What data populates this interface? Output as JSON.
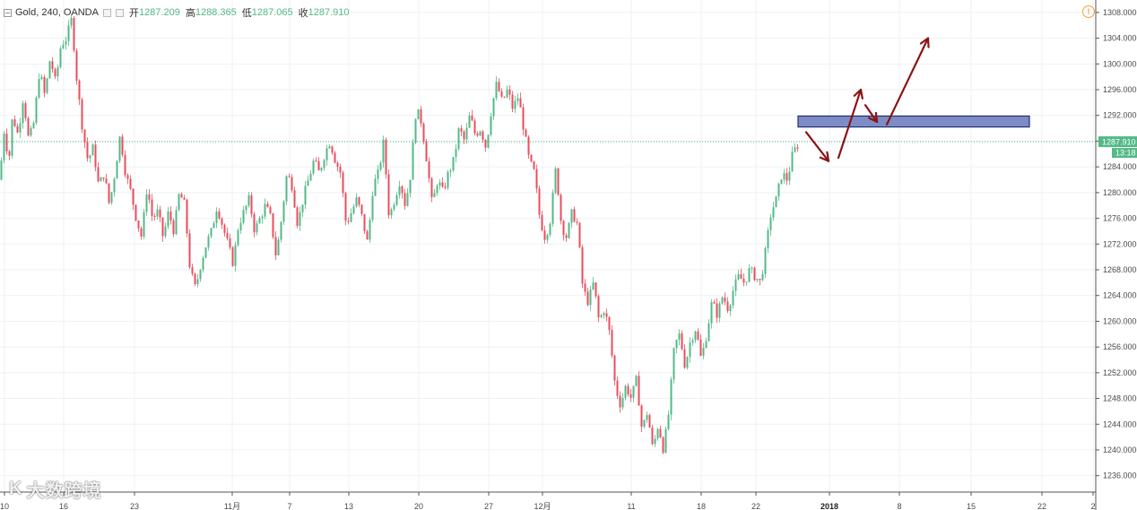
{
  "legend": {
    "symbol": "Gold, 240, OANDA",
    "open_label": "开",
    "open_value": "1287.209",
    "high_label": "高",
    "high_value": "1288.365",
    "low_label": "低",
    "low_value": "1287.065",
    "close_label": "收",
    "close_value": "1287.910"
  },
  "price_tag": {
    "price": "1287.910",
    "countdown": "13:18"
  },
  "watermark": {
    "logo": "K",
    "text": "大数跨境"
  },
  "colors": {
    "up": "#53b987",
    "down": "#eb4d5c",
    "box_fill": "#7d8cc4",
    "box_stroke": "#1f2f7a",
    "arrow": "#8b1414",
    "price_line": "#53b987",
    "grid": "#eef1f4"
  },
  "chart_data": {
    "type": "candlestick",
    "y_axis": {
      "min": 1234,
      "max": 1310,
      "ticks": [
        1236,
        1240,
        1244,
        1248,
        1252,
        1256,
        1260,
        1264,
        1268,
        1272,
        1276,
        1280,
        1284,
        1288,
        1292,
        1296,
        1300,
        1304,
        1308
      ]
    },
    "x_ticks": [
      {
        "label": "10"
      },
      {
        "label": "16"
      },
      {
        "label": "23"
      },
      {
        "label": "11月"
      },
      {
        "label": "7"
      },
      {
        "label": "13"
      },
      {
        "label": "20"
      },
      {
        "label": "27"
      },
      {
        "label": "12月"
      },
      {
        "label": "11"
      },
      {
        "label": "18"
      },
      {
        "label": "22"
      },
      {
        "label": "2018",
        "bold": true
      },
      {
        "label": "8"
      },
      {
        "label": "15"
      },
      {
        "label": "22"
      },
      {
        "label": "2"
      }
    ],
    "path": [
      [
        0,
        1282
      ],
      [
        4,
        1290
      ],
      [
        10,
        1285
      ],
      [
        14,
        1292
      ],
      [
        20,
        1289
      ],
      [
        26,
        1295
      ],
      [
        32,
        1288
      ],
      [
        38,
        1291
      ],
      [
        44,
        1299
      ],
      [
        50,
        1295
      ],
      [
        56,
        1301
      ],
      [
        62,
        1297
      ],
      [
        68,
        1303
      ],
      [
        74,
        1304
      ],
      [
        80,
        1307
      ],
      [
        86,
        1297
      ],
      [
        92,
        1290
      ],
      [
        98,
        1285
      ],
      [
        104,
        1287
      ],
      [
        110,
        1281
      ],
      [
        116,
        1283
      ],
      [
        122,
        1278
      ],
      [
        128,
        1283
      ],
      [
        134,
        1289
      ],
      [
        140,
        1283
      ],
      [
        146,
        1280
      ],
      [
        152,
        1276
      ],
      [
        158,
        1273
      ],
      [
        164,
        1281
      ],
      [
        170,
        1276
      ],
      [
        176,
        1277
      ],
      [
        182,
        1273
      ],
      [
        188,
        1277
      ],
      [
        194,
        1274
      ],
      [
        200,
        1280
      ],
      [
        206,
        1278
      ],
      [
        212,
        1268
      ],
      [
        218,
        1265
      ],
      [
        224,
        1269
      ],
      [
        230,
        1272
      ],
      [
        236,
        1274
      ],
      [
        242,
        1278
      ],
      [
        248,
        1275
      ],
      [
        254,
        1272
      ],
      [
        260,
        1269
      ],
      [
        266,
        1275
      ],
      [
        272,
        1277
      ],
      [
        278,
        1279
      ],
      [
        284,
        1274
      ],
      [
        290,
        1276
      ],
      [
        296,
        1278
      ],
      [
        302,
        1276
      ],
      [
        308,
        1270
      ],
      [
        314,
        1276
      ],
      [
        320,
        1283
      ],
      [
        326,
        1281
      ],
      [
        332,
        1275
      ],
      [
        338,
        1279
      ],
      [
        344,
        1282
      ],
      [
        350,
        1285
      ],
      [
        356,
        1283
      ],
      [
        362,
        1286
      ],
      [
        368,
        1288
      ],
      [
        374,
        1285
      ],
      [
        380,
        1283
      ],
      [
        386,
        1275
      ],
      [
        392,
        1277
      ],
      [
        398,
        1279
      ],
      [
        404,
        1276
      ],
      [
        410,
        1272
      ],
      [
        416,
        1281
      ],
      [
        422,
        1283
      ],
      [
        428,
        1288
      ],
      [
        434,
        1276
      ],
      [
        440,
        1279
      ],
      [
        446,
        1282
      ],
      [
        452,
        1278
      ],
      [
        458,
        1283
      ],
      [
        464,
        1293
      ],
      [
        470,
        1291
      ],
      [
        476,
        1285
      ],
      [
        482,
        1278
      ],
      [
        488,
        1282
      ],
      [
        494,
        1280
      ],
      [
        500,
        1283
      ],
      [
        506,
        1285
      ],
      [
        512,
        1290
      ],
      [
        518,
        1288
      ],
      [
        524,
        1292
      ],
      [
        530,
        1289
      ],
      [
        536,
        1290
      ],
      [
        542,
        1287
      ],
      [
        548,
        1293
      ],
      [
        554,
        1297
      ],
      [
        560,
        1294
      ],
      [
        566,
        1296
      ],
      [
        572,
        1293
      ],
      [
        578,
        1295
      ],
      [
        584,
        1290
      ],
      [
        590,
        1285
      ],
      [
        596,
        1283
      ],
      [
        602,
        1276
      ],
      [
        608,
        1273
      ],
      [
        614,
        1276
      ],
      [
        620,
        1284
      ],
      [
        626,
        1275
      ],
      [
        632,
        1273
      ],
      [
        638,
        1277
      ],
      [
        644,
        1275
      ],
      [
        650,
        1265
      ],
      [
        656,
        1263
      ],
      [
        662,
        1266
      ],
      [
        668,
        1260
      ],
      [
        674,
        1262
      ],
      [
        680,
        1258
      ],
      [
        686,
        1250
      ],
      [
        692,
        1247
      ],
      [
        698,
        1250
      ],
      [
        704,
        1248
      ],
      [
        710,
        1251
      ],
      [
        716,
        1243
      ],
      [
        722,
        1246
      ],
      [
        728,
        1240
      ],
      [
        734,
        1244
      ],
      [
        740,
        1240
      ],
      [
        746,
        1246
      ],
      [
        752,
        1256
      ],
      [
        758,
        1258
      ],
      [
        764,
        1253
      ],
      [
        770,
        1257
      ],
      [
        776,
        1259
      ],
      [
        782,
        1254
      ],
      [
        788,
        1258
      ],
      [
        794,
        1263
      ],
      [
        800,
        1261
      ],
      [
        806,
        1264
      ],
      [
        812,
        1262
      ],
      [
        818,
        1265
      ],
      [
        824,
        1267
      ],
      [
        830,
        1266
      ],
      [
        836,
        1268
      ],
      [
        842,
        1267
      ],
      [
        848,
        1266
      ],
      [
        854,
        1271
      ],
      [
        860,
        1277
      ],
      [
        866,
        1279
      ],
      [
        872,
        1283
      ],
      [
        878,
        1282
      ],
      [
        884,
        1286
      ],
      [
        890,
        1287.5
      ],
      [
        894,
        1287.9
      ]
    ],
    "current_price": 1287.91,
    "resistance_zone": {
      "x_start": 890,
      "x_end": 1148,
      "y_low": 1290.2,
      "y_high": 1291.9
    },
    "projection_arrows": [
      {
        "from": [
          899,
          1289.4
        ],
        "to": [
          924,
          1284.9
        ]
      },
      {
        "from": [
          935,
          1285.4
        ],
        "to": [
          960,
          1296.0
        ]
      },
      {
        "from": [
          965,
          1293.6
        ],
        "to": [
          978,
          1291.0
        ]
      },
      {
        "from": [
          989,
          1290.6
        ],
        "to": [
          1035,
          1304.0
        ]
      }
    ]
  }
}
